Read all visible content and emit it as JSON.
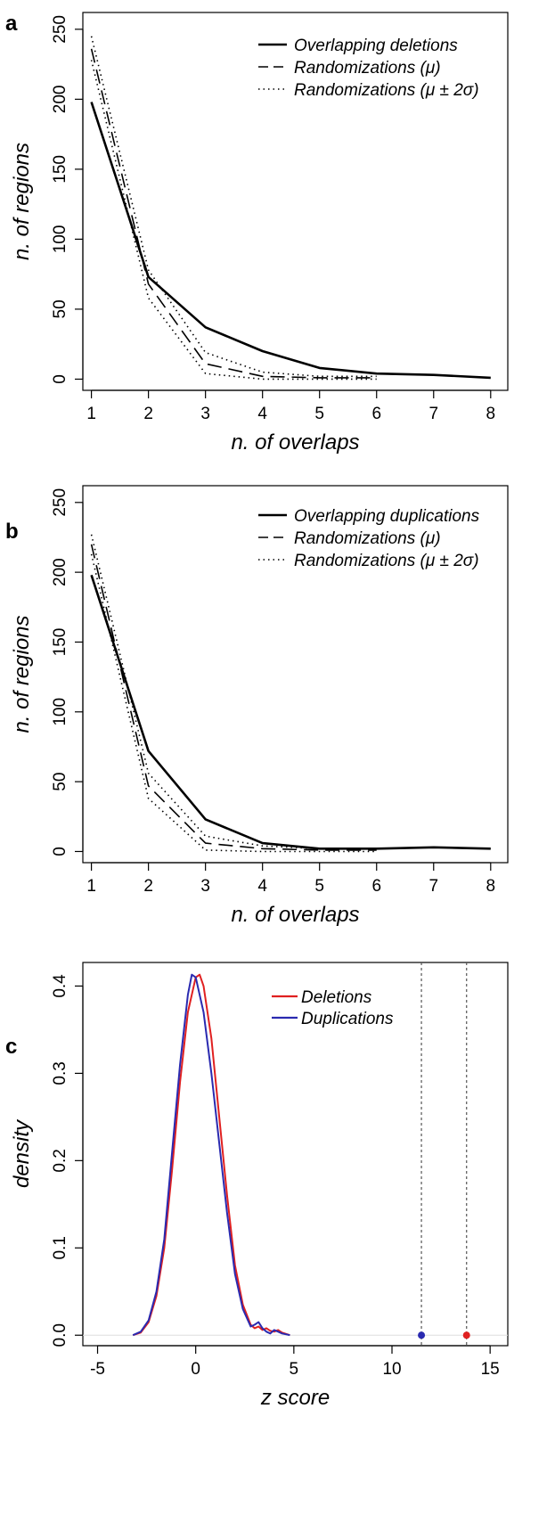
{
  "chart_data": [
    {
      "panel": "a",
      "type": "line",
      "xlabel": "n. of overlaps",
      "ylabel": "n. of regions",
      "xlim": [
        1,
        8
      ],
      "ylim": [
        0,
        250
      ],
      "xticks": [
        1,
        2,
        3,
        4,
        5,
        6,
        7,
        8
      ],
      "yticks": [
        0,
        50,
        100,
        150,
        200,
        250
      ],
      "legend_position": "top-right",
      "series": [
        {
          "name": "Overlapping deletions",
          "style": "solid",
          "x": [
            1,
            2,
            3,
            4,
            5,
            6,
            7,
            8
          ],
          "y": [
            198,
            73,
            37,
            20,
            8,
            4,
            3,
            1
          ]
        },
        {
          "name": "Randomizations (μ)",
          "style": "dashed",
          "x": [
            1,
            2,
            3,
            4,
            5,
            6
          ],
          "y": [
            236,
            68,
            11,
            2,
            1,
            1
          ]
        },
        {
          "name": "Randomizations (μ ± 2σ)",
          "style": "dotted",
          "x": [
            1,
            2,
            3,
            4,
            5,
            6
          ],
          "y": [
            245,
            78,
            19,
            5,
            2,
            2
          ]
        },
        {
          "name": "",
          "style": "dotted",
          "x": [
            1,
            2,
            3,
            4,
            5,
            6
          ],
          "y": [
            228,
            58,
            4,
            0,
            0,
            0
          ]
        }
      ]
    },
    {
      "panel": "b",
      "type": "line",
      "xlabel": "n. of overlaps",
      "ylabel": "n. of regions",
      "xlim": [
        1,
        8
      ],
      "ylim": [
        0,
        250
      ],
      "xticks": [
        1,
        2,
        3,
        4,
        5,
        6,
        7,
        8
      ],
      "yticks": [
        0,
        50,
        100,
        150,
        200,
        250
      ],
      "legend_position": "top-right",
      "series": [
        {
          "name": "Overlapping duplications",
          "style": "solid",
          "x": [
            1,
            2,
            3,
            4,
            5,
            6,
            7,
            8
          ],
          "y": [
            198,
            72,
            23,
            6,
            2,
            2,
            3,
            2
          ]
        },
        {
          "name": "Randomizations (μ)",
          "style": "dashed",
          "x": [
            1,
            2,
            3,
            4,
            5,
            6
          ],
          "y": [
            220,
            47,
            6,
            2,
            1,
            1
          ]
        },
        {
          "name": "Randomizations (μ ± 2σ)",
          "style": "dotted",
          "x": [
            1,
            2,
            3,
            4,
            5,
            6
          ],
          "y": [
            227,
            56,
            11,
            4,
            2,
            2
          ]
        },
        {
          "name": "",
          "style": "dotted",
          "x": [
            1,
            2,
            3,
            4,
            5,
            6
          ],
          "y": [
            213,
            38,
            1,
            0,
            0,
            0
          ]
        }
      ]
    },
    {
      "panel": "c",
      "type": "line",
      "xlabel": "z score",
      "ylabel": "density",
      "xlim": [
        -5,
        15
      ],
      "ylim": [
        0,
        0.42
      ],
      "xticks": [
        -5,
        0,
        5,
        10,
        15
      ],
      "yticks": [
        0.0,
        0.1,
        0.2,
        0.3,
        0.4
      ],
      "ytick_labels": [
        "0.0",
        "0.1",
        "0.2",
        "0.3",
        "0.4"
      ],
      "legend_position": "top-center",
      "series": [
        {
          "name": "Deletions",
          "color": "#e02020",
          "x": [
            -3.2,
            -2.8,
            -2.4,
            -2.0,
            -1.6,
            -1.2,
            -0.8,
            -0.4,
            0.0,
            0.2,
            0.4,
            0.8,
            1.2,
            1.6,
            2.0,
            2.4,
            2.8,
            3.0,
            3.2,
            3.4,
            3.6,
            3.8,
            4.0,
            4.2,
            4.4,
            4.8
          ],
          "y": [
            0.0,
            0.003,
            0.015,
            0.045,
            0.1,
            0.19,
            0.29,
            0.37,
            0.41,
            0.413,
            0.4,
            0.34,
            0.25,
            0.16,
            0.08,
            0.035,
            0.012,
            0.008,
            0.01,
            0.006,
            0.008,
            0.005,
            0.004,
            0.006,
            0.003,
            0.0
          ]
        },
        {
          "name": "Duplications",
          "color": "#2a2ab0",
          "x": [
            -3.2,
            -2.8,
            -2.4,
            -2.0,
            -1.6,
            -1.2,
            -0.8,
            -0.4,
            -0.2,
            0.0,
            0.4,
            0.8,
            1.2,
            1.6,
            2.0,
            2.4,
            2.8,
            3.0,
            3.2,
            3.4,
            3.6,
            3.8,
            4.0,
            4.2,
            4.4,
            4.8
          ],
          "y": [
            0.0,
            0.004,
            0.017,
            0.05,
            0.11,
            0.21,
            0.31,
            0.39,
            0.413,
            0.41,
            0.37,
            0.3,
            0.22,
            0.14,
            0.07,
            0.03,
            0.01,
            0.012,
            0.015,
            0.008,
            0.004,
            0.002,
            0.006,
            0.004,
            0.002,
            0.0
          ]
        }
      ],
      "vlines": [
        {
          "x": 11.5,
          "color": "#2a2ab0"
        },
        {
          "x": 13.8,
          "color": "#e02020"
        }
      ],
      "points": [
        {
          "x": 11.5,
          "y": 0.0,
          "color": "#2a2ab0"
        },
        {
          "x": 13.8,
          "y": 0.0,
          "color": "#e02020"
        }
      ]
    }
  ],
  "panels": [
    {
      "letter": "a"
    },
    {
      "letter": "b"
    },
    {
      "letter": "c"
    }
  ],
  "colors": {
    "deletions": "#e02020",
    "duplications": "#2a2ab0",
    "axis": "#000000",
    "baseline": "#dddddd",
    "vline": "#555555"
  }
}
